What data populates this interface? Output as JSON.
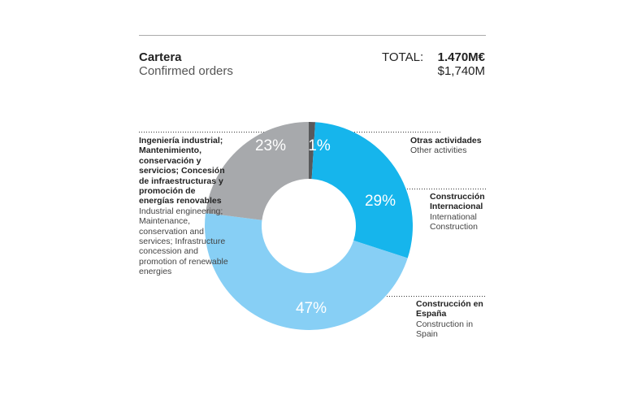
{
  "chart_data": {
    "type": "donut",
    "title": "Cartera",
    "subtitle": "Confirmed orders",
    "total_label": "TOTAL:",
    "total_primary": "1.470M€",
    "total_secondary": "$1,740M",
    "categories": [
      "Otras actividades",
      "Construcción Internacional",
      "Construcción en España",
      "Ingeniería industrial; Mantenimiento, conservación y servicios; Concesión de infraestructuras y promoción de energías renovables"
    ],
    "categories_en": [
      "Other activities",
      "International Construction",
      "Construction in Spain",
      "Industrial engineering; Maintenance, conservation and services; Infrastructure concession and promotion of renewable energies"
    ],
    "values": [
      1,
      29,
      47,
      23
    ],
    "value_labels": [
      "1%",
      "29%",
      "47%",
      "23%"
    ],
    "colors": [
      "#58595b",
      "#16b5ec",
      "#87cff5",
      "#a7a9ac"
    ]
  }
}
